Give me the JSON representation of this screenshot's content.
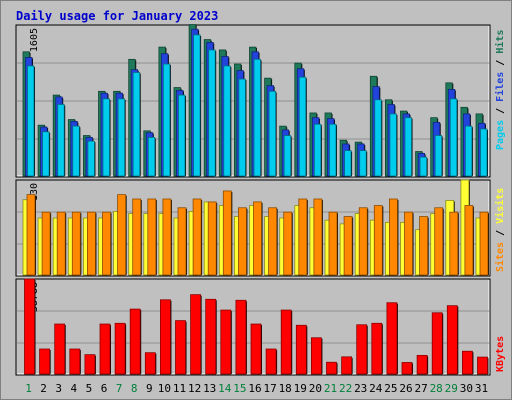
{
  "chart_data": [
    {
      "type": "bar",
      "title": "Daily usage for January 2023",
      "panel": "top",
      "categories": [
        "1",
        "2",
        "3",
        "4",
        "5",
        "6",
        "7",
        "8",
        "9",
        "10",
        "11",
        "12",
        "13",
        "14",
        "15",
        "16",
        "17",
        "18",
        "19",
        "20",
        "21",
        "22",
        "23",
        "24",
        "25",
        "26",
        "27",
        "28",
        "29",
        "30",
        "31"
      ],
      "weekend_days": [
        "1",
        "7",
        "8",
        "14",
        "15",
        "21",
        "22",
        "28",
        "29"
      ],
      "ymax_label": "1605",
      "ymax": 1605,
      "series": [
        {
          "name": "Hits",
          "color": "#1f7a5a",
          "values": [
            1320,
            540,
            860,
            600,
            430,
            900,
            900,
            1240,
            480,
            1370,
            940,
            1610,
            1450,
            1340,
            1190,
            1370,
            1040,
            530,
            1200,
            670,
            670,
            380,
            360,
            1060,
            810,
            690,
            260,
            620,
            990,
            730,
            660
          ]
        },
        {
          "name": "Files",
          "color": "#2244dd",
          "values": [
            1260,
            520,
            840,
            580,
            410,
            880,
            880,
            1130,
            460,
            1300,
            910,
            1560,
            1420,
            1270,
            1120,
            1320,
            960,
            490,
            1140,
            620,
            610,
            340,
            340,
            950,
            760,
            660,
            240,
            570,
            920,
            660,
            560
          ]
        },
        {
          "name": "Pages",
          "color": "#00ccee",
          "values": [
            1170,
            470,
            760,
            530,
            370,
            820,
            820,
            1100,
            410,
            1190,
            860,
            1500,
            1340,
            1170,
            1030,
            1240,
            900,
            430,
            1050,
            550,
            550,
            270,
            270,
            810,
            660,
            620,
            200,
            430,
            820,
            530,
            500
          ]
        }
      ]
    },
    {
      "type": "bar",
      "panel": "middle",
      "categories": [
        "1",
        "2",
        "3",
        "4",
        "5",
        "6",
        "7",
        "8",
        "9",
        "10",
        "11",
        "12",
        "13",
        "14",
        "15",
        "16",
        "17",
        "18",
        "19",
        "20",
        "21",
        "22",
        "23",
        "24",
        "25",
        "26",
        "27",
        "28",
        "29",
        "30",
        "31"
      ],
      "ymax_label": "130",
      "ymax": 130,
      "series": [
        {
          "name": "Visits",
          "color": "#ffff33",
          "values": [
            103,
            78,
            78,
            78,
            78,
            78,
            87,
            84,
            84,
            84,
            78,
            87,
            100,
            95,
            80,
            95,
            80,
            78,
            95,
            92,
            75,
            70,
            84,
            75,
            72,
            72,
            62,
            84,
            102,
            130,
            78
          ]
        },
        {
          "name": "Sites",
          "color": "#ff8800",
          "values": [
            110,
            86,
            86,
            86,
            86,
            86,
            110,
            104,
            104,
            104,
            92,
            104,
            100,
            115,
            92,
            100,
            92,
            86,
            104,
            104,
            86,
            80,
            92,
            95,
            104,
            86,
            80,
            92,
            86,
            95,
            86
          ]
        }
      ]
    },
    {
      "type": "bar",
      "panel": "bottom",
      "categories": [
        "1",
        "2",
        "3",
        "4",
        "5",
        "6",
        "7",
        "8",
        "9",
        "10",
        "11",
        "12",
        "13",
        "14",
        "15",
        "16",
        "17",
        "18",
        "19",
        "20",
        "21",
        "22",
        "23",
        "24",
        "25",
        "26",
        "27",
        "28",
        "29",
        "30",
        "31"
      ],
      "ymax_label": "38788",
      "ymax": 38788,
      "series": [
        {
          "name": "KBytes",
          "color": "#ff0000",
          "values": [
            38788,
            10200,
            20400,
            10200,
            7900,
            20400,
            20700,
            26500,
            8700,
            30300,
            21800,
            32400,
            30500,
            26100,
            30100,
            20400,
            10200,
            26100,
            19900,
            14800,
            4800,
            7000,
            20100,
            20700,
            29100,
            4700,
            7600,
            25000,
            27900,
            9300,
            6900
          ]
        }
      ]
    }
  ]
}
